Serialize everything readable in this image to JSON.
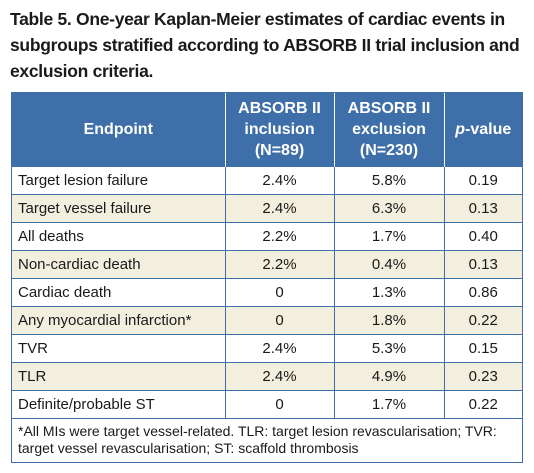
{
  "caption": "Table 5. One-year Kaplan-Meier estimates of cardiac events in subgroups stratified according to ABSORB II trial inclusion and exclusion criteria.",
  "table": {
    "headers": {
      "endpoint": "Endpoint",
      "inclusion_l1": "ABSORB II",
      "inclusion_l2": "inclusion",
      "inclusion_l3": "(N=89)",
      "exclusion_l1": "ABSORB II",
      "exclusion_l2": "exclusion",
      "exclusion_l3": "(N=230)",
      "pvalue_italic": "p",
      "pvalue_rest": "-value"
    },
    "rows": [
      {
        "endpoint": "Target lesion failure",
        "inclusion": "2.4%",
        "exclusion": "5.8%",
        "p": "0.19"
      },
      {
        "endpoint": "Target vessel failure",
        "inclusion": "2.4%",
        "exclusion": "6.3%",
        "p": "0.13"
      },
      {
        "endpoint": "All deaths",
        "inclusion": "2.2%",
        "exclusion": "1.7%",
        "p": "0.40"
      },
      {
        "endpoint": "Non-cardiac death",
        "inclusion": "2.2%",
        "exclusion": "0.4%",
        "p": "0.13"
      },
      {
        "endpoint": "Cardiac death",
        "inclusion": "0",
        "exclusion": "1.3%",
        "p": "0.86"
      },
      {
        "endpoint": "Any myocardial infarction*",
        "inclusion": "0",
        "exclusion": "1.8%",
        "p": "0.22"
      },
      {
        "endpoint": "TVR",
        "inclusion": "2.4%",
        "exclusion": "5.3%",
        "p": "0.15"
      },
      {
        "endpoint": "TLR",
        "inclusion": "2.4%",
        "exclusion": "4.9%",
        "p": "0.23"
      },
      {
        "endpoint": "Definite/probable ST",
        "inclusion": "0",
        "exclusion": "1.7%",
        "p": "0.22"
      }
    ],
    "footnote": "*All MIs were target vessel-related. TLR: target lesion revascularisation; TVR: target vessel revascularisation; ST: scaffold thrombosis"
  },
  "colors": {
    "header_bg": "#3f6fa8",
    "alt_row_bg": "#f2efdf",
    "border": "#3f6fa8"
  }
}
